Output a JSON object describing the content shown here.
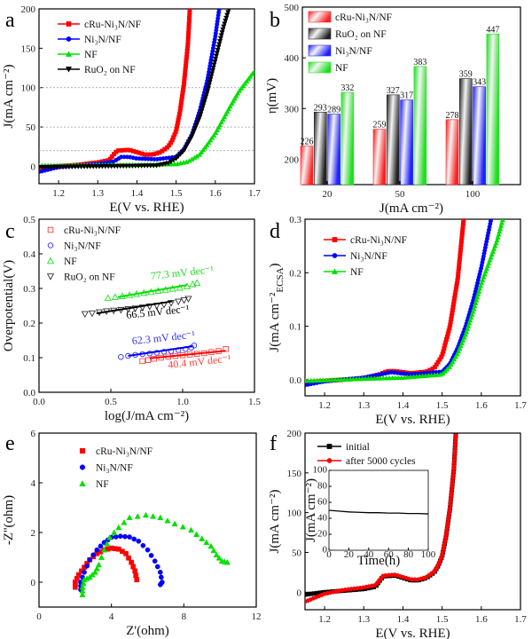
{
  "chart_data": [
    {
      "panel": "a",
      "type": "line",
      "xlabel": "E(V vs. RHE)",
      "ylabel": "J(mA cm⁻²)",
      "xlim": [
        1.15,
        1.7
      ],
      "ylim": [
        -22,
        200
      ],
      "xticks": [
        "1.2",
        "1.3",
        "1.4",
        "1.5",
        "1.6",
        "1.7"
      ],
      "yticks": [
        "0",
        "50",
        "100",
        "150",
        "200"
      ],
      "reference_lines": [
        20,
        50,
        100
      ],
      "legend": "top-left",
      "series": [
        {
          "name": "cRu-Ni₃N/NF",
          "color": "#ff0000",
          "marker": "square",
          "x": [
            1.15,
            1.2,
            1.25,
            1.3,
            1.33,
            1.34,
            1.35,
            1.38,
            1.4,
            1.42,
            1.44,
            1.46,
            1.48,
            1.49,
            1.5,
            1.51,
            1.52,
            1.53,
            1.535
          ],
          "y": [
            -2,
            0,
            2,
            5,
            8,
            15,
            20,
            21,
            18,
            15,
            15,
            18,
            25,
            33,
            45,
            70,
            105,
            155,
            200
          ]
        },
        {
          "name": "Ni₃N/NF",
          "color": "#0000ff",
          "marker": "circle",
          "x": [
            1.15,
            1.2,
            1.25,
            1.3,
            1.34,
            1.36,
            1.38,
            1.4,
            1.45,
            1.5,
            1.52,
            1.54,
            1.56,
            1.58,
            1.6,
            1.61
          ],
          "y": [
            -7,
            -1,
            1,
            3,
            6,
            12,
            12,
            10,
            9,
            12,
            22,
            40,
            70,
            110,
            165,
            200
          ]
        },
        {
          "name": "NF",
          "color": "#00e000",
          "marker": "triangle-up",
          "x": [
            1.15,
            1.4,
            1.5,
            1.53,
            1.56,
            1.58,
            1.6,
            1.62,
            1.64,
            1.66,
            1.68,
            1.7
          ],
          "y": [
            1,
            2,
            3,
            6,
            15,
            28,
            42,
            60,
            78,
            95,
            108,
            121
          ]
        },
        {
          "name": "RuO₂ on NF",
          "color": "#000000",
          "marker": "triangle-down",
          "x": [
            1.15,
            1.3,
            1.45,
            1.48,
            1.5,
            1.52,
            1.54,
            1.56,
            1.58,
            1.6,
            1.62,
            1.635
          ],
          "y": [
            -1,
            0,
            1,
            4,
            10,
            20,
            38,
            62,
            95,
            135,
            175,
            200
          ]
        }
      ]
    },
    {
      "panel": "b",
      "type": "bar",
      "xlabel": "J(mA cm⁻²)",
      "ylabel": "η(mV)",
      "ylim": [
        150,
        500
      ],
      "yticks": [
        "200",
        "300",
        "400",
        "500"
      ],
      "categories": [
        "20",
        "50",
        "100"
      ],
      "legend": "top-left",
      "series": [
        {
          "name": "cRu-Ni₃N/NF",
          "color": "#ff2020",
          "values": [
            226,
            259,
            278
          ]
        },
        {
          "name": "RuO₂ on NF",
          "color": "#222222",
          "values": [
            293,
            327,
            359
          ]
        },
        {
          "name": "Ni₃N/NF",
          "color": "#2020ff",
          "values": [
            289,
            317,
            343
          ]
        },
        {
          "name": "NF",
          "color": "#20e020",
          "values": [
            332,
            383,
            447
          ]
        }
      ]
    },
    {
      "panel": "c",
      "type": "scatter",
      "xlabel": "log(J/mA cm⁻²)",
      "ylabel": "Overpotential(V)",
      "xlim": [
        0,
        1.5
      ],
      "ylim": [
        0,
        0.5
      ],
      "xticks": [
        "0.0",
        "0.5",
        "1.0",
        "1.5"
      ],
      "yticks": [
        "0.0",
        "0.1",
        "0.2",
        "0.3",
        "0.4",
        "0.5"
      ],
      "legend": "top-left",
      "series": [
        {
          "name": "cRu-Ni₃N/NF",
          "color": "#ff4040",
          "marker": "square-open",
          "x": [
            0.72,
            0.76,
            0.8,
            0.85,
            0.9,
            0.95,
            1.0,
            1.05,
            1.1,
            1.15,
            1.2,
            1.25,
            1.3
          ],
          "y": [
            0.09,
            0.093,
            0.097,
            0.1,
            0.103,
            0.105,
            0.107,
            0.109,
            0.111,
            0.113,
            0.116,
            0.119,
            0.125
          ],
          "fit": {
            "x": [
              0.77,
              1.3
            ],
            "y": [
              0.098,
              0.12
            ],
            "label": "40.4 mV dec⁻¹",
            "label_at": [
              0.9,
              0.069
            ]
          }
        },
        {
          "name": "Ni₃N/NF",
          "color": "#3030ff",
          "marker": "circle-open",
          "x": [
            0.57,
            0.62,
            0.67,
            0.72,
            0.77,
            0.82,
            0.87,
            0.92,
            0.97,
            1.02,
            1.06,
            1.08
          ],
          "y": [
            0.102,
            0.105,
            0.108,
            0.11,
            0.112,
            0.114,
            0.117,
            0.119,
            0.122,
            0.125,
            0.129,
            0.135
          ],
          "fit": {
            "x": [
              0.62,
              1.07
            ],
            "y": [
              0.105,
              0.133
            ],
            "label": "62.3 mV dec⁻¹",
            "label_at": [
              0.65,
              0.138
            ]
          }
        },
        {
          "name": "NF",
          "color": "#20e020",
          "marker": "triangle-open",
          "x": [
            0.48,
            0.53,
            0.58,
            0.63,
            0.68,
            0.73,
            0.78,
            0.83,
            0.88,
            0.93,
            0.98,
            1.03,
            1.07,
            1.1
          ],
          "y": [
            0.272,
            0.275,
            0.278,
            0.281,
            0.284,
            0.287,
            0.29,
            0.293,
            0.296,
            0.299,
            0.302,
            0.306,
            0.312,
            0.316
          ],
          "fit": {
            "x": [
              0.55,
              1.03
            ],
            "y": [
              0.275,
              0.31
            ],
            "label": "77.3 mV dec⁻¹",
            "label_at": [
              0.78,
              0.326
            ]
          }
        },
        {
          "name": "RuO₂ on NF",
          "color": "#333333",
          "marker": "triangle-down-open",
          "x": [
            0.32,
            0.37,
            0.42,
            0.47,
            0.52,
            0.57,
            0.62,
            0.67,
            0.72,
            0.77,
            0.82,
            0.87,
            0.92,
            0.97,
            1.01,
            1.04
          ],
          "y": [
            0.226,
            0.228,
            0.231,
            0.234,
            0.236,
            0.238,
            0.24,
            0.242,
            0.245,
            0.248,
            0.25,
            0.253,
            0.258,
            0.262,
            0.266,
            0.27
          ],
          "fit": {
            "x": [
              0.4,
              0.93
            ],
            "y": [
              0.228,
              0.263
            ],
            "label": "66.5 mV dec⁻¹",
            "label_at": [
              0.61,
              0.213
            ]
          }
        }
      ]
    },
    {
      "panel": "d",
      "type": "line",
      "xlabel": "E(V vs. RHE)",
      "ylabel": "J(mA cm⁻²",
      "ylabel_sub": "ECSA",
      "ylabel_end": ")",
      "xlim": [
        1.15,
        1.7
      ],
      "ylim": [
        -0.03,
        0.3
      ],
      "xticks": [
        "1.2",
        "1.3",
        "1.4",
        "1.5",
        "1.6",
        "1.7"
      ],
      "yticks": [
        "0.0",
        "0.1",
        "0.2",
        "0.3"
      ],
      "legend": "top-left",
      "series": [
        {
          "name": "cRu-Ni₃N/NF",
          "color": "#ff0000",
          "marker": "square",
          "x": [
            1.15,
            1.3,
            1.34,
            1.36,
            1.38,
            1.42,
            1.46,
            1.48,
            1.5,
            1.52,
            1.54,
            1.555
          ],
          "y": [
            -0.005,
            0.003,
            0.01,
            0.016,
            0.016,
            0.012,
            0.015,
            0.022,
            0.045,
            0.1,
            0.19,
            0.3
          ]
        },
        {
          "name": "Ni₃N/NF",
          "color": "#0000ff",
          "marker": "circle",
          "x": [
            1.15,
            1.2,
            1.3,
            1.37,
            1.42,
            1.5,
            1.52,
            1.54,
            1.56,
            1.58,
            1.6,
            1.625
          ],
          "y": [
            -0.01,
            -0.003,
            0.004,
            0.014,
            0.01,
            0.015,
            0.03,
            0.06,
            0.1,
            0.15,
            0.21,
            0.3
          ]
        },
        {
          "name": "NF",
          "color": "#00e000",
          "marker": "triangle-up",
          "x": [
            1.15,
            1.3,
            1.4,
            1.5,
            1.52,
            1.54,
            1.56,
            1.58,
            1.6,
            1.62,
            1.64,
            1.655
          ],
          "y": [
            -0.002,
            0.002,
            0.004,
            0.01,
            0.025,
            0.05,
            0.085,
            0.13,
            0.18,
            0.22,
            0.26,
            0.3
          ]
        }
      ]
    },
    {
      "panel": "e",
      "type": "scatter",
      "xlabel": "Z'(ohm)",
      "ylabel": "-Z''(ohm)",
      "xlim": [
        0,
        12
      ],
      "ylim": [
        -1,
        6
      ],
      "xticks": [
        "0",
        "4",
        "8",
        "12"
      ],
      "yticks": [
        "0",
        "2",
        "4",
        "6"
      ],
      "legend": "top-left",
      "series": [
        {
          "name": "cRu-Ni₃N/NF",
          "color": "#ff0000",
          "marker": "square",
          "x": [
            2,
            2,
            2.2,
            2.5,
            2.8,
            3.2,
            3.6,
            4,
            4.4,
            4.8,
            5.1,
            5.3,
            5.4
          ],
          "y": [
            -0.2,
            0,
            0.3,
            0.6,
            0.9,
            1.15,
            1.3,
            1.37,
            1.33,
            1.15,
            0.8,
            0.45,
            0.1
          ]
        },
        {
          "name": "Ni₃N/NF",
          "color": "#0000ff",
          "marker": "circle",
          "x": [
            2.3,
            2.3,
            2.5,
            2.8,
            3.2,
            3.6,
            4,
            4.5,
            5,
            5.5,
            6,
            6.4,
            6.7,
            6.8,
            6.7
          ],
          "y": [
            -0.3,
            0,
            0.4,
            0.9,
            1.3,
            1.6,
            1.8,
            1.85,
            1.82,
            1.65,
            1.3,
            0.85,
            0.4,
            0,
            -0.1
          ]
        },
        {
          "name": "NF",
          "color": "#00e000",
          "marker": "triangle-up",
          "x": [
            2.4,
            2.4,
            2.5,
            2.8,
            3.1,
            3.3,
            3.6,
            3.9,
            4.4,
            5,
            5.9,
            6.7,
            7.5,
            8.4,
            9,
            9.5,
            9.8,
            10.1,
            10.4
          ],
          "y": [
            -0.5,
            -0.2,
            0.1,
            0.2,
            0.4,
            0.7,
            1.3,
            1.8,
            2.2,
            2.6,
            2.7,
            2.6,
            2.35,
            2.1,
            1.75,
            1.45,
            1.1,
            0.85,
            0.8
          ]
        }
      ]
    },
    {
      "panel": "f",
      "type": "line",
      "xlabel": "E(V vs. RHE)",
      "ylabel": "J(mA cm⁻²)",
      "xlim": [
        1.15,
        1.7
      ],
      "ylim": [
        -22,
        200
      ],
      "xticks": [
        "1.2",
        "1.3",
        "1.4",
        "1.5",
        "1.6",
        "1.7"
      ],
      "yticks": [
        "0",
        "50",
        "100",
        "150",
        "200"
      ],
      "legend": "top-left",
      "series": [
        {
          "name": "initial",
          "color": "#000000",
          "marker": "square",
          "x": [
            1.15,
            1.2,
            1.25,
            1.3,
            1.33,
            1.34,
            1.35,
            1.38,
            1.4,
            1.42,
            1.44,
            1.46,
            1.48,
            1.49,
            1.5,
            1.51,
            1.52,
            1.53,
            1.535
          ],
          "y": [
            -3,
            0,
            2,
            4,
            7,
            14,
            20,
            21,
            18,
            15,
            15,
            18,
            25,
            33,
            45,
            70,
            105,
            155,
            200
          ]
        },
        {
          "name": "after 5000 cycles",
          "color": "#ff0000",
          "marker": "circle",
          "x": [
            1.15,
            1.2,
            1.25,
            1.3,
            1.33,
            1.34,
            1.35,
            1.38,
            1.4,
            1.42,
            1.44,
            1.46,
            1.48,
            1.49,
            1.5,
            1.51,
            1.52,
            1.53,
            1.535
          ],
          "y": [
            -12,
            -2,
            3,
            6,
            9,
            15,
            21,
            22,
            19,
            16,
            16,
            19,
            26,
            34,
            46,
            71,
            106,
            156,
            200
          ]
        }
      ],
      "inset": {
        "type": "line",
        "xlabel": "Time(h)",
        "ylabel": "J(mA cm⁻²)",
        "xlim": [
          0,
          100
        ],
        "ylim": [
          0,
          100
        ],
        "xticks": [
          "0",
          "20",
          "40",
          "60",
          "80",
          "100"
        ],
        "yticks": [
          "0",
          "20",
          "40",
          "60",
          "80",
          "100"
        ],
        "series": [
          {
            "color": "#000000",
            "x": [
              0,
              10,
              20,
              30,
              40,
              50,
              60,
              70,
              80,
              90,
              100
            ],
            "y": [
              50,
              49,
              48,
              47.5,
              47,
              47,
              46.5,
              46.5,
              46,
              46,
              45.5
            ]
          }
        ]
      }
    }
  ]
}
